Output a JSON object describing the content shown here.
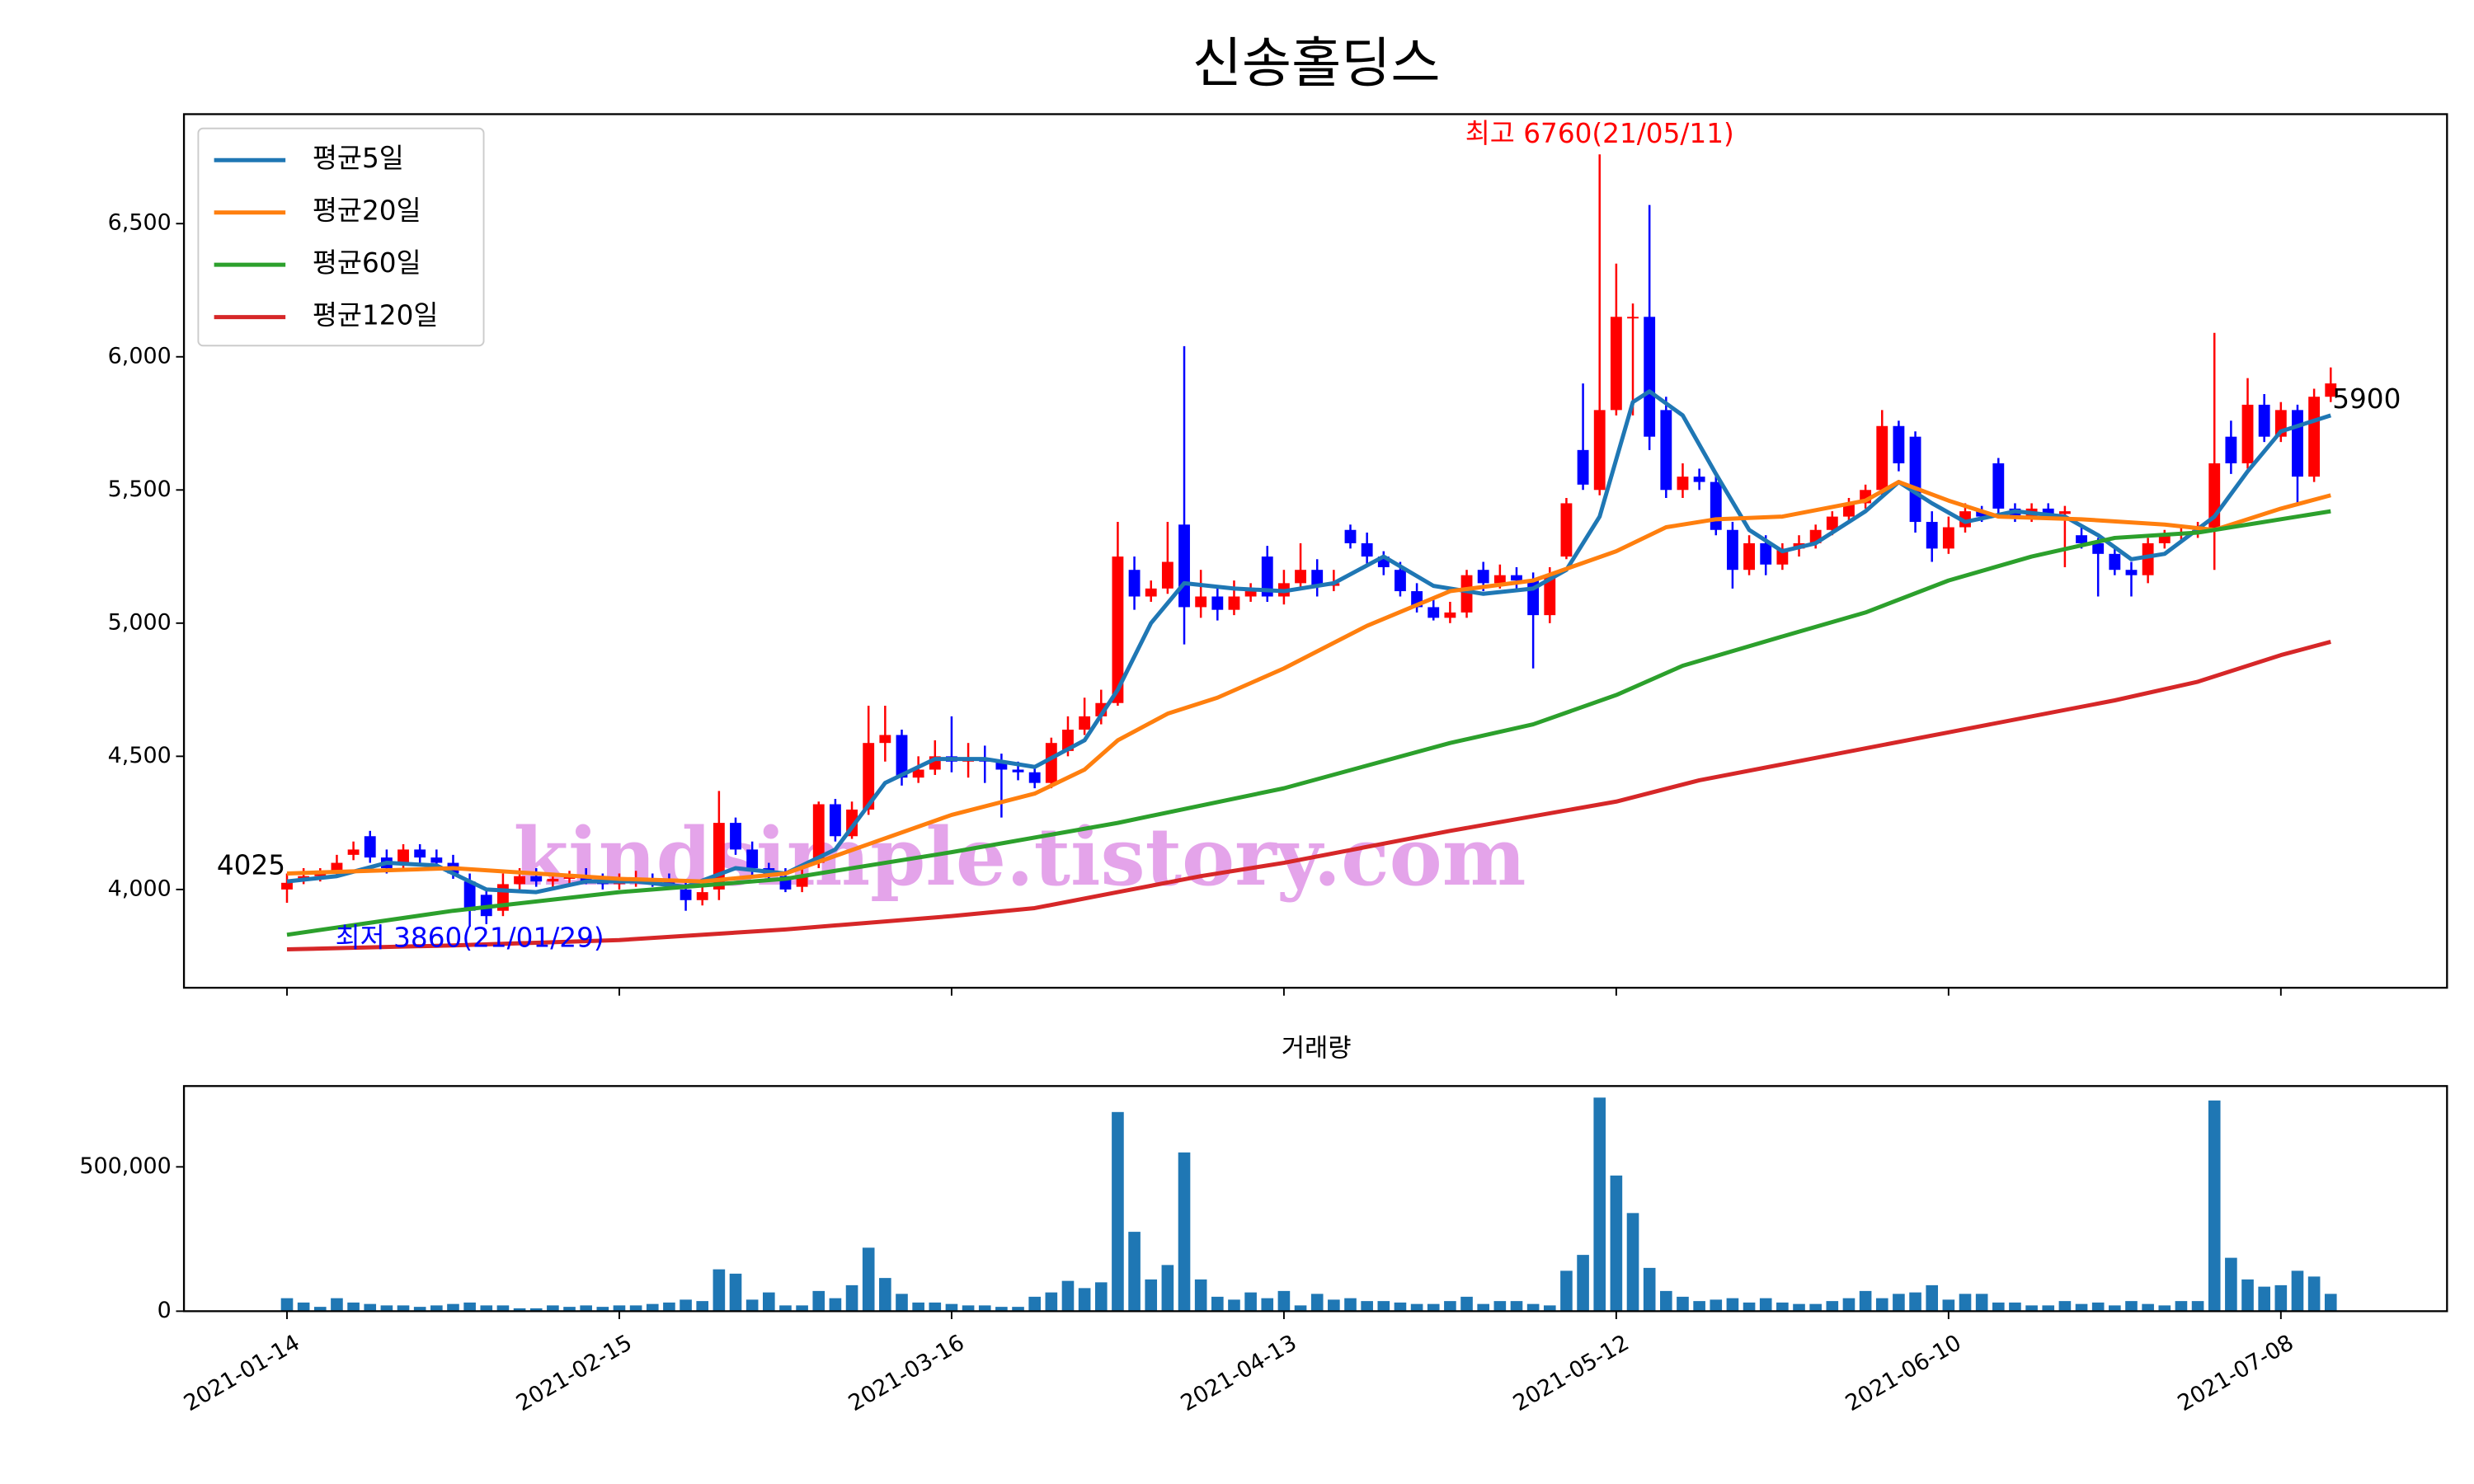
{
  "chart_data": {
    "type": "candlestick",
    "title": "신송홀딩스",
    "up_color": "#ff0000",
    "down_color": "#0000ff",
    "x": [
      0,
      1,
      2,
      3,
      4,
      5,
      6,
      7,
      8,
      9,
      10,
      11,
      12,
      13,
      14,
      15,
      16,
      17,
      18,
      19,
      20,
      21,
      22,
      23,
      24,
      25,
      26,
      27,
      28,
      29,
      30,
      31,
      32,
      33,
      34,
      35,
      36,
      37,
      38,
      39,
      40,
      41,
      42,
      43,
      44,
      45,
      46,
      47,
      48,
      49,
      50,
      51,
      52,
      53,
      54,
      55,
      56,
      57,
      58,
      59,
      60,
      61,
      62,
      63,
      64,
      65,
      66,
      67,
      68,
      69,
      70,
      71,
      72,
      73,
      74,
      75,
      76,
      77,
      78,
      79,
      80,
      81,
      82,
      83,
      84,
      85,
      86,
      87,
      88,
      89,
      90,
      91,
      92,
      93,
      94,
      95,
      96,
      97,
      98,
      99,
      100,
      101,
      102,
      103,
      104,
      105,
      106,
      107,
      108,
      109,
      110,
      111,
      112,
      113,
      114,
      115,
      116,
      117,
      118,
      119,
      120,
      121,
      122,
      123
    ],
    "open": [
      4000,
      4040,
      4050,
      4070,
      4130,
      4200,
      4120,
      4100,
      4150,
      4120,
      4100,
      4030,
      3980,
      3920,
      4020,
      4050,
      4030,
      4040,
      4050,
      4030,
      4020,
      4030,
      4040,
      4030,
      4000,
      3960,
      4000,
      4250,
      4150,
      4080,
      4050,
      4010,
      4100,
      4320,
      4200,
      4300,
      4550,
      4580,
      4420,
      4450,
      4500,
      4480,
      4490,
      4480,
      4450,
      4440,
      4400,
      4520,
      4600,
      4650,
      4700,
      5200,
      5100,
      5130,
      5370,
      5060,
      5100,
      5050,
      5100,
      5250,
      5100,
      5150,
      5200,
      5140,
      5350,
      5300,
      5250,
      5200,
      5120,
      5060,
      5020,
      5040,
      5200,
      5150,
      5180,
      5160,
      5030,
      5250,
      5650,
      5500,
      5800,
      6150,
      6150,
      5800,
      5500,
      5550,
      5530,
      5350,
      5200,
      5300,
      5220,
      5280,
      5300,
      5350,
      5400,
      5450,
      5500,
      5740,
      5700,
      5380,
      5280,
      5360,
      5420,
      5600,
      5430,
      5400,
      5430,
      5410,
      5330,
      5300,
      5260,
      5200,
      5180,
      5300,
      5330,
      5340,
      5350,
      5700,
      5600,
      5820,
      5700,
      5800,
      5550,
      5850
    ],
    "high": [
      4060,
      4080,
      4080,
      4130,
      4180,
      4220,
      4150,
      4170,
      4170,
      4150,
      4130,
      4060,
      4000,
      4060,
      4080,
      4080,
      4060,
      4070,
      4080,
      4060,
      4060,
      4070,
      4060,
      4060,
      4030,
      4020,
      4370,
      4270,
      4180,
      4100,
      4080,
      4080,
      4330,
      4340,
      4330,
      4690,
      4690,
      4600,
      4500,
      4560,
      4650,
      4550,
      4540,
      4510,
      4480,
      4460,
      4570,
      4650,
      4720,
      4750,
      5380,
      5250,
      5160,
      5380,
      6040,
      5200,
      5130,
      5160,
      5150,
      5290,
      5200,
      5300,
      5240,
      5200,
      5370,
      5340,
      5270,
      5230,
      5150,
      5090,
      5080,
      5200,
      5230,
      5220,
      5210,
      5190,
      5210,
      5470,
      5900,
      6760,
      6350,
      6200,
      6570,
      5850,
      5600,
      5580,
      5560,
      5380,
      5330,
      5330,
      5300,
      5330,
      5370,
      5420,
      5470,
      5520,
      5800,
      5760,
      5720,
      5420,
      5400,
      5450,
      5440,
      5620,
      5450,
      5450,
      5450,
      5440,
      5360,
      5320,
      5280,
      5230,
      5320,
      5350,
      5360,
      5380,
      6090,
      5760,
      5920,
      5860,
      5830,
      5820,
      5880,
      5960
    ],
    "low": [
      3950,
      4020,
      4030,
      4050,
      4110,
      4100,
      4060,
      4080,
      4100,
      4080,
      4040,
      3860,
      3870,
      3900,
      4000,
      4010,
      4010,
      4020,
      4020,
      4000,
      4000,
      4010,
      4010,
      4000,
      3920,
      3940,
      3960,
      4130,
      4050,
      4040,
      3990,
      3990,
      4080,
      4180,
      4190,
      4280,
      4480,
      4390,
      4400,
      4430,
      4440,
      4420,
      4400,
      4270,
      4410,
      4380,
      4380,
      4500,
      4580,
      4620,
      4690,
      5050,
      5080,
      5110,
      4920,
      5020,
      5010,
      5030,
      5080,
      5080,
      5070,
      5130,
      5100,
      5120,
      5280,
      5220,
      5180,
      5100,
      5040,
      5010,
      5000,
      5020,
      5120,
      5130,
      5130,
      4830,
      5000,
      5240,
      5500,
      5480,
      5780,
      5780,
      5650,
      5470,
      5470,
      5500,
      5330,
      5130,
      5180,
      5180,
      5200,
      5250,
      5280,
      5330,
      5380,
      5430,
      5480,
      5570,
      5340,
      5230,
      5260,
      5340,
      5380,
      5400,
      5380,
      5380,
      5400,
      5210,
      5280,
      5100,
      5180,
      5100,
      5150,
      5280,
      5310,
      5320,
      5200,
      5560,
      5580,
      5680,
      5680,
      5440,
      5530,
      5830
    ],
    "close": [
      4025,
      4050,
      4060,
      4100,
      4150,
      4120,
      4080,
      4150,
      4120,
      4100,
      4060,
      3920,
      3900,
      4020,
      4050,
      4030,
      4040,
      4050,
      4030,
      4020,
      4030,
      4040,
      4030,
      4020,
      3960,
      3990,
      4250,
      4150,
      4080,
      4060,
      4000,
      4050,
      4320,
      4200,
      4300,
      4550,
      4580,
      4420,
      4450,
      4500,
      4480,
      4490,
      4480,
      4450,
      4440,
      4400,
      4550,
      4600,
      4650,
      4700,
      5250,
      5100,
      5130,
      5230,
      5060,
      5100,
      5050,
      5100,
      5120,
      5100,
      5150,
      5200,
      5140,
      5150,
      5300,
      5250,
      5210,
      5120,
      5060,
      5020,
      5040,
      5180,
      5150,
      5180,
      5160,
      5030,
      5180,
      5450,
      5520,
      5800,
      6150,
      6150,
      5700,
      5500,
      5550,
      5530,
      5350,
      5200,
      5300,
      5220,
      5280,
      5300,
      5350,
      5400,
      5450,
      5500,
      5740,
      5600,
      5380,
      5280,
      5360,
      5420,
      5400,
      5430,
      5400,
      5430,
      5410,
      5420,
      5300,
      5260,
      5200,
      5180,
      5300,
      5330,
      5340,
      5350,
      5600,
      5600,
      5820,
      5700,
      5800,
      5550,
      5850,
      5900
    ],
    "volume": [
      45000,
      30000,
      15000,
      45000,
      30000,
      25000,
      20000,
      20000,
      15000,
      20000,
      25000,
      30000,
      20000,
      20000,
      10000,
      10000,
      20000,
      15000,
      20000,
      15000,
      20000,
      20000,
      25000,
      30000,
      40000,
      35000,
      145000,
      130000,
      40000,
      65000,
      20000,
      20000,
      70000,
      45000,
      90000,
      220000,
      115000,
      60000,
      30000,
      30000,
      25000,
      20000,
      20000,
      15000,
      15000,
      50000,
      65000,
      105000,
      80000,
      100000,
      690000,
      275000,
      110000,
      160000,
      550000,
      110000,
      50000,
      40000,
      65000,
      45000,
      70000,
      20000,
      60000,
      40000,
      45000,
      35000,
      35000,
      30000,
      25000,
      25000,
      35000,
      50000,
      25000,
      35000,
      35000,
      25000,
      20000,
      140000,
      195000,
      740000,
      470000,
      340000,
      150000,
      70000,
      50000,
      35000,
      40000,
      45000,
      30000,
      45000,
      30000,
      25000,
      25000,
      35000,
      45000,
      70000,
      45000,
      60000,
      65000,
      90000,
      40000,
      60000,
      60000,
      30000,
      30000,
      20000,
      20000,
      35000,
      25000,
      30000,
      20000,
      35000,
      25000,
      20000,
      35000,
      35000,
      730000,
      185000,
      110000,
      85000,
      90000,
      140000,
      120000,
      60000
    ],
    "volume_color": "#1f77b4",
    "volume_title": "거래량",
    "ma_series": [
      {
        "name": "평균5일",
        "color": "#1f77b4",
        "x": [
          0,
          3,
          6,
          9,
          12,
          15,
          18,
          21,
          24,
          27,
          30,
          33,
          36,
          39,
          42,
          45,
          48,
          50,
          52,
          54,
          57,
          60,
          63,
          66,
          69,
          72,
          75,
          77,
          79,
          81,
          82,
          84,
          86,
          88,
          90,
          92,
          95,
          97,
          99,
          101,
          104,
          107,
          109,
          111,
          113,
          116,
          118,
          120,
          123
        ],
        "values": [
          4030,
          4050,
          4100,
          4090,
          4000,
          3990,
          4030,
          4030,
          4010,
          4080,
          4060,
          4150,
          4400,
          4490,
          4490,
          4460,
          4560,
          4750,
          5000,
          5150,
          5130,
          5120,
          5150,
          5250,
          5140,
          5110,
          5130,
          5200,
          5400,
          5830,
          5870,
          5780,
          5560,
          5350,
          5270,
          5300,
          5420,
          5530,
          5450,
          5380,
          5420,
          5400,
          5330,
          5240,
          5260,
          5400,
          5570,
          5720,
          5780
        ]
      },
      {
        "name": "평균20일",
        "color": "#ff7f0e",
        "x": [
          0,
          5,
          10,
          15,
          20,
          25,
          30,
          35,
          40,
          45,
          48,
          50,
          53,
          56,
          60,
          65,
          70,
          75,
          80,
          83,
          86,
          90,
          95,
          97,
          100,
          103,
          108,
          113,
          116,
          120,
          123
        ],
        "values": [
          4060,
          4070,
          4080,
          4060,
          4040,
          4030,
          4060,
          4170,
          4280,
          4360,
          4450,
          4560,
          4660,
          4720,
          4830,
          4990,
          5120,
          5160,
          5270,
          5360,
          5390,
          5400,
          5460,
          5530,
          5460,
          5400,
          5390,
          5370,
          5350,
          5430,
          5480
        ]
      },
      {
        "name": "평균60일",
        "color": "#2ca02c",
        "x": [
          0,
          10,
          20,
          30,
          40,
          50,
          60,
          70,
          75,
          80,
          84,
          90,
          95,
          100,
          105,
          110,
          115,
          120,
          123
        ],
        "values": [
          3830,
          3920,
          3990,
          4040,
          4140,
          4250,
          4380,
          4550,
          4620,
          4730,
          4840,
          4950,
          5040,
          5160,
          5250,
          5320,
          5340,
          5390,
          5420
        ]
      },
      {
        "name": "평균120일",
        "color": "#d62728",
        "x": [
          0,
          10,
          20,
          30,
          40,
          45,
          50,
          55,
          60,
          70,
          80,
          85,
          90,
          100,
          110,
          115,
          120,
          123
        ],
        "values": [
          3775,
          3790,
          3810,
          3850,
          3900,
          3930,
          3990,
          4050,
          4100,
          4220,
          4330,
          4410,
          4470,
          4590,
          4710,
          4780,
          4880,
          4930
        ]
      }
    ],
    "legend": "upper left",
    "annotations": [
      {
        "text": "최고 6760(21/05/11)",
        "x": 79,
        "y": 6760,
        "color": "#ff0000",
        "position": "above"
      },
      {
        "text": "최저 3860(21/01/29)",
        "x": 11,
        "y": 3860,
        "color": "#0000ff",
        "position": "below"
      },
      {
        "text": "4025",
        "x": 0,
        "y": 4025,
        "color": "#000000",
        "position": "left"
      },
      {
        "text": "5900",
        "x": 123,
        "y": 5900,
        "color": "#000000",
        "position": "right"
      }
    ],
    "watermark": "kindsimple.tistory.com",
    "xlim": [
      -6.2,
      130
    ],
    "xticks": [
      {
        "value": 0,
        "label": "2021-01-14"
      },
      {
        "value": 20,
        "label": "2021-02-15"
      },
      {
        "value": 40,
        "label": "2021-03-16"
      },
      {
        "value": 60,
        "label": "2021-04-13"
      },
      {
        "value": 80,
        "label": "2021-05-12"
      },
      {
        "value": 100,
        "label": "2021-06-10"
      },
      {
        "value": 120,
        "label": "2021-07-08"
      }
    ],
    "ylim": [
      3631,
      6911
    ],
    "yticks": [
      {
        "value": 4000,
        "label": "4,000"
      },
      {
        "value": 4500,
        "label": "4,500"
      },
      {
        "value": 5000,
        "label": "5,000"
      },
      {
        "value": 5500,
        "label": "5,500"
      },
      {
        "value": 6000,
        "label": "6,000"
      },
      {
        "value": 6500,
        "label": "6,500"
      }
    ],
    "volume_ylim": [
      0,
      780000
    ],
    "volume_yticks": [
      0,
      {
        "value": 500000,
        "label": "500,000"
      }
    ]
  }
}
